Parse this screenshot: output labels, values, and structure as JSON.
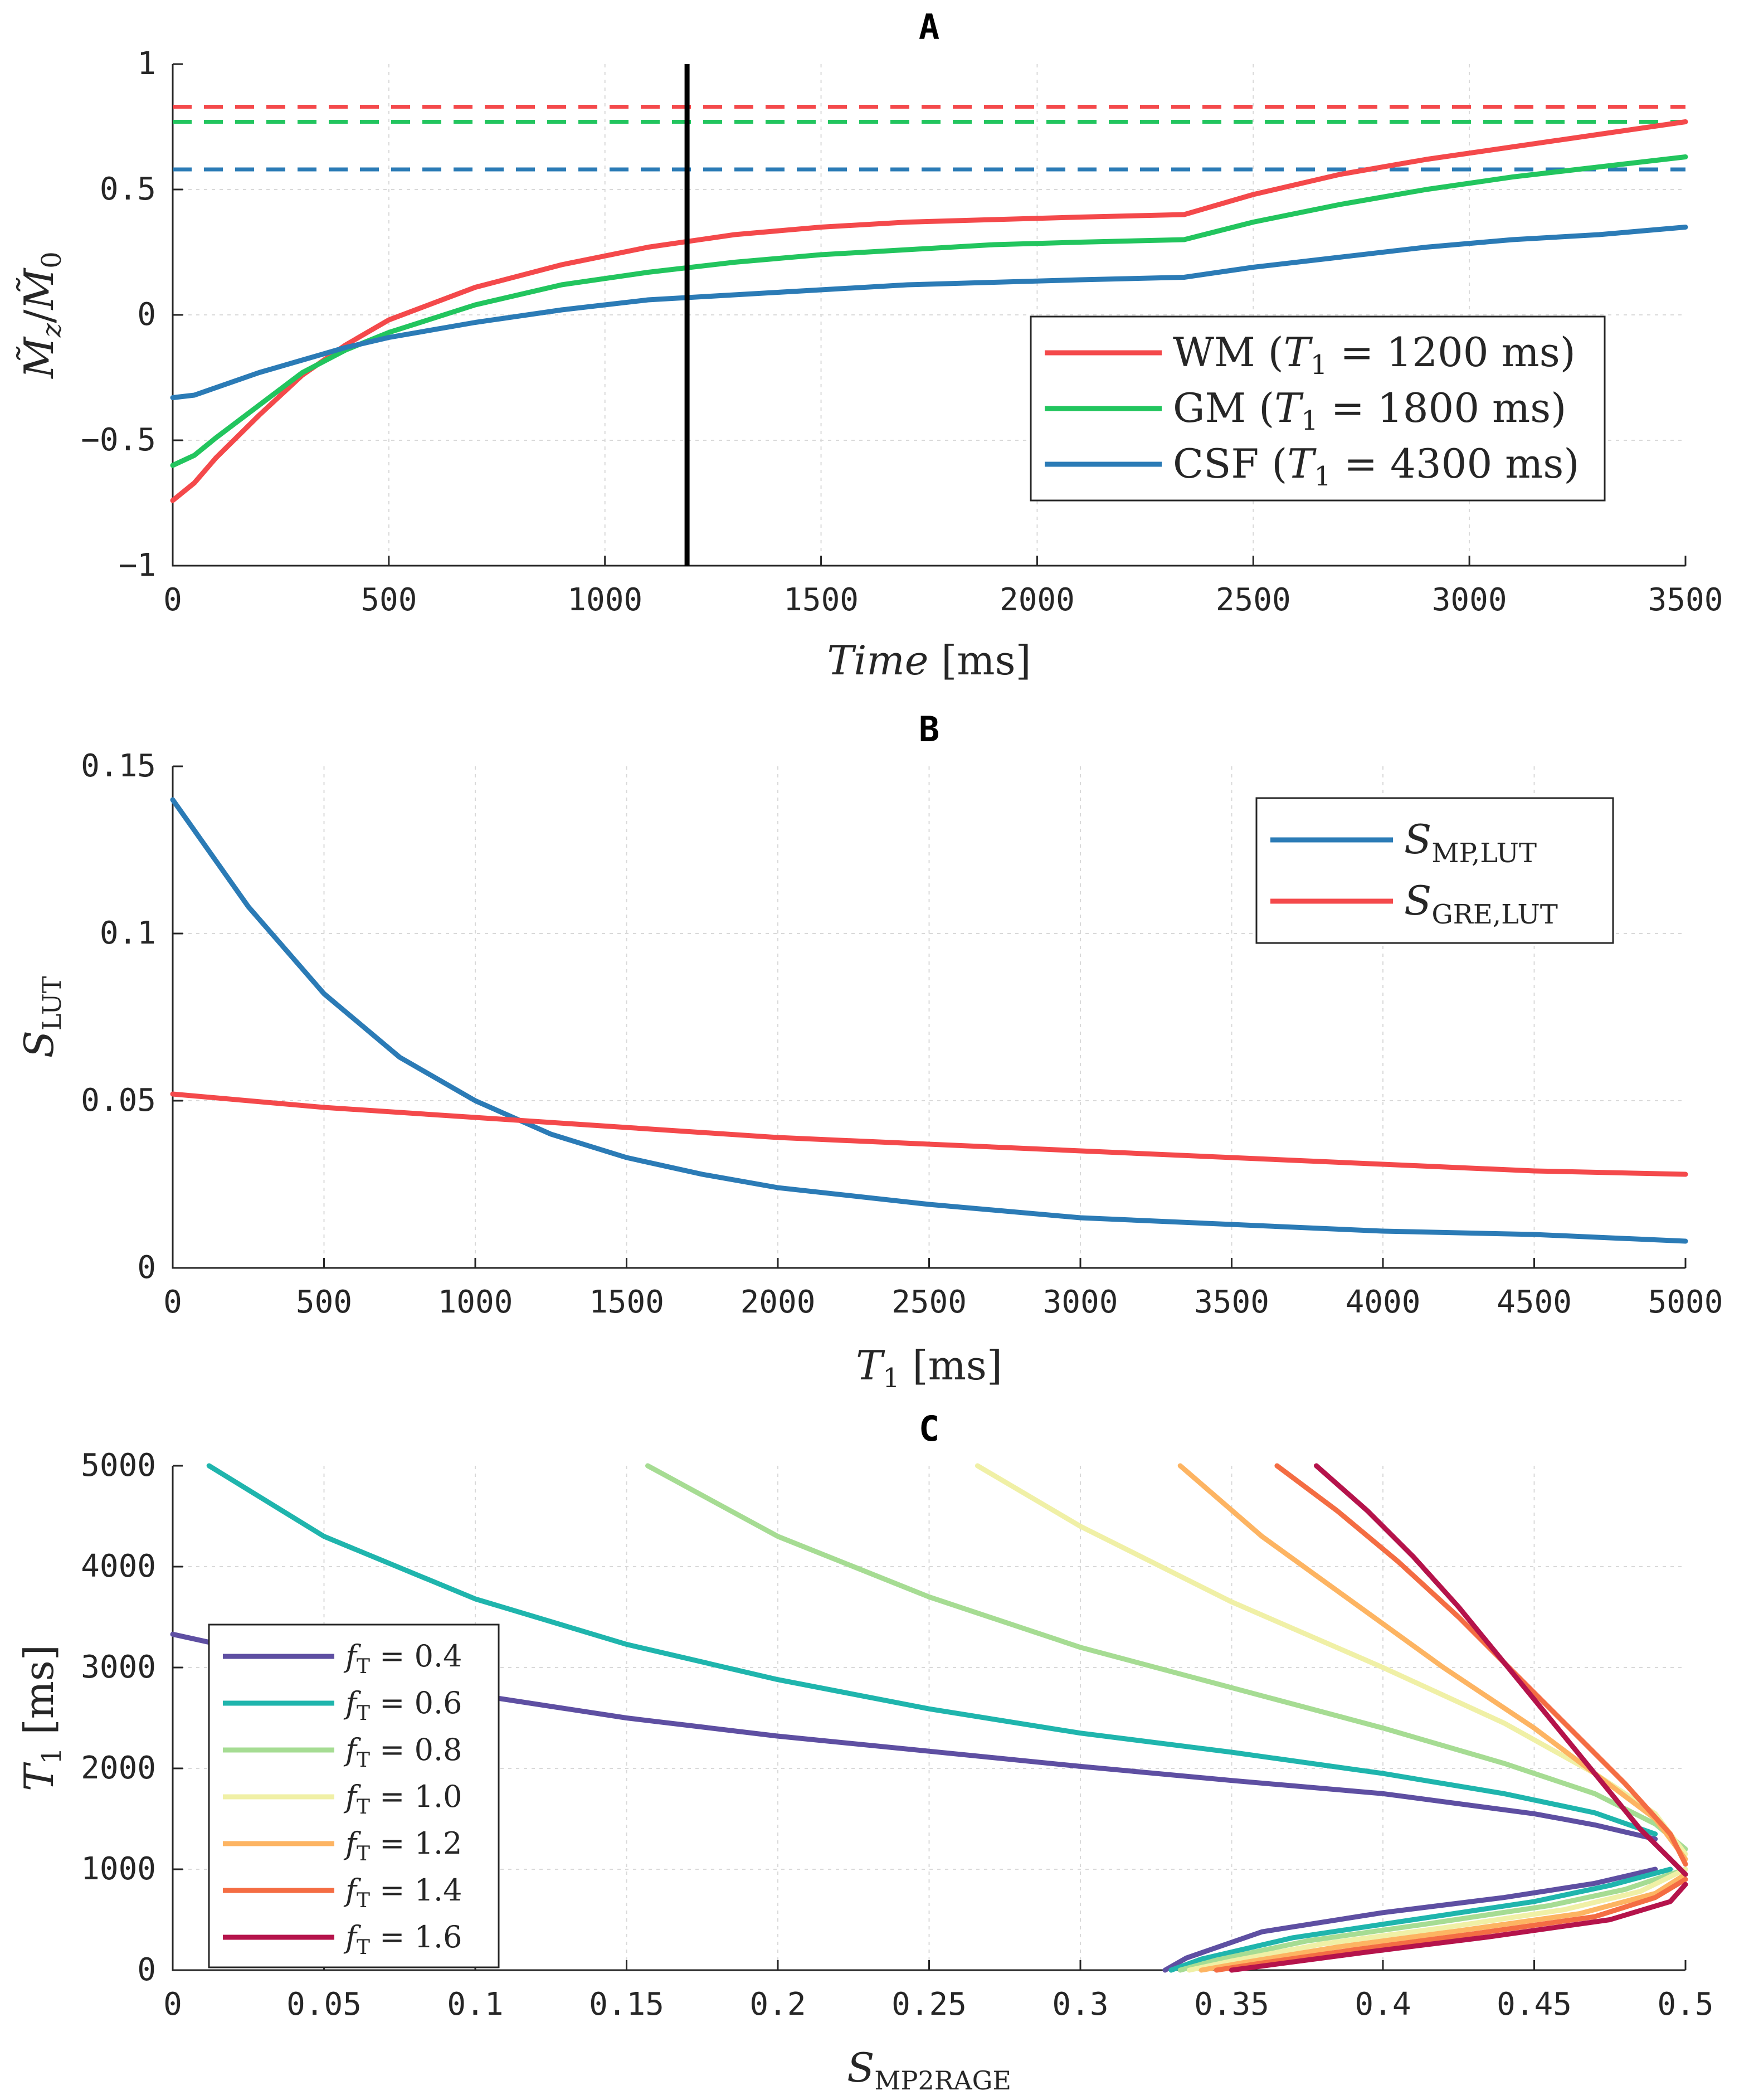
{
  "chart_data": [
    {
      "panel": "A",
      "type": "line",
      "title": "A",
      "xlabel": "Time [ms]",
      "ylabel": "M̃z / M̃0",
      "xlim": [
        0,
        3500
      ],
      "ylim": [
        -1,
        1
      ],
      "xticks": [
        0,
        500,
        1000,
        1500,
        2000,
        2500,
        3000,
        3500
      ],
      "yticks": [
        -1,
        -0.5,
        0,
        0.5,
        1
      ],
      "ytick_labels": [
        "−1",
        "−0.5",
        "0",
        "0.5",
        "1"
      ],
      "grid": true,
      "legend_position": "lower-right",
      "vertical_line": {
        "x": 1190,
        "color": "#000000"
      },
      "series": [
        {
          "name": "WM (T1 = 1200 ms)",
          "label_parts": [
            "WM (",
            "T",
            "1",
            " = 1200 ms)"
          ],
          "color": "#f4494b",
          "x": [
            0,
            50,
            100,
            200,
            300,
            400,
            500,
            700,
            900,
            1100,
            1300,
            1500,
            1700,
            1900,
            2100,
            2340,
            2500,
            2700,
            2900,
            3100,
            3300,
            3500
          ],
          "y": [
            -0.74,
            -0.67,
            -0.57,
            -0.4,
            -0.24,
            -0.12,
            -0.02,
            0.11,
            0.2,
            0.27,
            0.32,
            0.35,
            0.37,
            0.38,
            0.39,
            0.4,
            0.48,
            0.56,
            0.62,
            0.67,
            0.72,
            0.77
          ]
        },
        {
          "name": "GM (T1 = 1800 ms)",
          "label_parts": [
            "GM (",
            "T",
            "1",
            " = 1800 ms)"
          ],
          "color": "#22c55e",
          "x": [
            0,
            50,
            100,
            200,
            300,
            400,
            500,
            700,
            900,
            1100,
            1300,
            1500,
            1700,
            1900,
            2100,
            2340,
            2500,
            2700,
            2900,
            3100,
            3300,
            3500
          ],
          "y": [
            -0.6,
            -0.56,
            -0.49,
            -0.36,
            -0.23,
            -0.14,
            -0.07,
            0.04,
            0.12,
            0.17,
            0.21,
            0.24,
            0.26,
            0.28,
            0.29,
            0.3,
            0.37,
            0.44,
            0.5,
            0.55,
            0.59,
            0.63
          ]
        },
        {
          "name": "CSF (T1 = 4300 ms)",
          "label_parts": [
            "CSF (",
            "T",
            "1",
            " = 4300 ms)"
          ],
          "color": "#2b7bb6",
          "x": [
            0,
            50,
            100,
            200,
            300,
            400,
            500,
            700,
            900,
            1100,
            1300,
            1500,
            1700,
            1900,
            2100,
            2340,
            2500,
            2700,
            2900,
            3100,
            3300,
            3500
          ],
          "y": [
            -0.33,
            -0.32,
            -0.29,
            -0.23,
            -0.18,
            -0.13,
            -0.09,
            -0.03,
            0.02,
            0.06,
            0.08,
            0.1,
            0.12,
            0.13,
            0.14,
            0.15,
            0.19,
            0.23,
            0.27,
            0.3,
            0.32,
            0.35
          ]
        }
      ],
      "reference_lines": [
        {
          "y": 0.83,
          "color": "#f4494b"
        },
        {
          "y": 0.77,
          "color": "#22c55e"
        },
        {
          "y": 0.58,
          "color": "#2b7bb6"
        }
      ]
    },
    {
      "panel": "B",
      "type": "line",
      "title": "B",
      "xlabel": "T1 [ms]",
      "ylabel": "S_LUT",
      "xlim": [
        0,
        5000
      ],
      "ylim": [
        0,
        0.15
      ],
      "xticks": [
        0,
        500,
        1000,
        1500,
        2000,
        2500,
        3000,
        3500,
        4000,
        4500,
        5000
      ],
      "yticks": [
        0,
        0.05,
        0.1,
        0.15
      ],
      "ytick_labels": [
        "0",
        "0.05",
        "0.1",
        "0.15"
      ],
      "grid": true,
      "legend_position": "top-right",
      "series": [
        {
          "name": "S_MP,LUT",
          "label_parts": [
            "S",
            "MP,LUT"
          ],
          "color": "#2b7bb6",
          "x": [
            0,
            250,
            500,
            750,
            1000,
            1250,
            1500,
            1750,
            2000,
            2500,
            3000,
            3500,
            4000,
            4500,
            5000
          ],
          "y": [
            0.14,
            0.108,
            0.082,
            0.063,
            0.05,
            0.04,
            0.033,
            0.028,
            0.024,
            0.019,
            0.015,
            0.013,
            0.011,
            0.01,
            0.008
          ]
        },
        {
          "name": "S_GRE,LUT",
          "label_parts": [
            "S",
            "GRE,LUT"
          ],
          "color": "#f4494b",
          "x": [
            0,
            500,
            1000,
            1500,
            2000,
            2500,
            3000,
            3500,
            4000,
            4500,
            5000
          ],
          "y": [
            0.052,
            0.048,
            0.045,
            0.042,
            0.039,
            0.037,
            0.035,
            0.033,
            0.031,
            0.029,
            0.028
          ]
        }
      ]
    },
    {
      "panel": "C",
      "type": "line",
      "title": "C",
      "xlabel": "S_MP2RAGE",
      "ylabel": "T1 [ms]",
      "xlim": [
        0,
        0.5
      ],
      "ylim": [
        0,
        5000
      ],
      "xticks": [
        0,
        0.05,
        0.1,
        0.15,
        0.2,
        0.25,
        0.3,
        0.35,
        0.4,
        0.45,
        0.5
      ],
      "xtick_labels": [
        "0",
        "0.05",
        "0.1",
        "0.15",
        "0.2",
        "0.25",
        "0.3",
        "0.35",
        "0.4",
        "0.45",
        "0.5"
      ],
      "yticks": [
        0,
        1000,
        2000,
        3000,
        4000,
        5000
      ],
      "grid": true,
      "legend_position": "lower-left",
      "series": [
        {
          "name": "fT = 0.4",
          "label_parts": [
            "f",
            "T",
            " = 0.4"
          ],
          "color": "#5e4fa2",
          "upper": {
            "x": [
              0.0,
              0.05,
              0.1,
              0.15,
              0.2,
              0.25,
              0.3,
              0.35,
              0.4,
              0.45,
              0.47,
              0.49
            ],
            "y": [
              3330,
              3000,
              2730,
              2500,
              2320,
              2170,
              2020,
              1880,
              1750,
              1550,
              1440,
              1300
            ]
          },
          "lower": {
            "x": [
              0.328,
              0.335,
              0.36,
              0.4,
              0.44,
              0.47,
              0.49
            ],
            "y": [
              0,
              120,
              380,
              570,
              720,
              860,
              1000
            ]
          }
        },
        {
          "name": "fT = 0.6",
          "label_parts": [
            "f",
            "T",
            " = 0.6"
          ],
          "color": "#1fb5ad",
          "upper": {
            "x": [
              0.012,
              0.05,
              0.1,
              0.15,
              0.2,
              0.25,
              0.3,
              0.35,
              0.4,
              0.44,
              0.47,
              0.49
            ],
            "y": [
              5000,
              4300,
              3680,
              3230,
              2880,
              2590,
              2350,
              2160,
              1950,
              1750,
              1560,
              1350
            ]
          },
          "lower": {
            "x": [
              0.33,
              0.34,
              0.37,
              0.41,
              0.45,
              0.475,
              0.495
            ],
            "y": [
              0,
              110,
              320,
              500,
              680,
              840,
              1000
            ]
          }
        },
        {
          "name": "fT = 0.8",
          "label_parts": [
            "f",
            "T",
            " = 0.8"
          ],
          "color": "#a6dc93",
          "upper": {
            "x": [
              0.157,
              0.2,
              0.25,
              0.3,
              0.35,
              0.4,
              0.44,
              0.47,
              0.49,
              0.5
            ],
            "y": [
              5000,
              4300,
              3700,
              3200,
              2800,
              2400,
              2050,
              1750,
              1450,
              1200
            ]
          },
          "lower": {
            "x": [
              0.333,
              0.345,
              0.375,
              0.415,
              0.455,
              0.48,
              0.5
            ],
            "y": [
              0,
              100,
              290,
              460,
              640,
              800,
              1000
            ]
          }
        },
        {
          "name": "fT = 1.0",
          "label_parts": [
            "f",
            "T",
            " = 1.0"
          ],
          "color": "#f0f0a6",
          "upper": {
            "x": [
              0.266,
              0.3,
              0.35,
              0.4,
              0.44,
              0.47,
              0.49,
              0.5
            ],
            "y": [
              5000,
              4400,
              3650,
              3000,
              2450,
              1950,
              1550,
              1150
            ]
          },
          "lower": {
            "x": [
              0.336,
              0.35,
              0.38,
              0.42,
              0.46,
              0.485,
              0.5
            ],
            "y": [
              0,
              90,
              260,
              420,
              600,
              780,
              1000
            ]
          }
        },
        {
          "name": "fT = 1.2",
          "label_parts": [
            "f",
            "T",
            " = 1.2"
          ],
          "color": "#fdb462",
          "upper": {
            "x": [
              0.333,
              0.36,
              0.39,
              0.42,
              0.45,
              0.47,
              0.49,
              0.5
            ],
            "y": [
              5000,
              4300,
              3650,
              3000,
              2400,
              1950,
              1500,
              1100
            ]
          },
          "lower": {
            "x": [
              0.34,
              0.355,
              0.385,
              0.425,
              0.465,
              0.49,
              0.5
            ],
            "y": [
              0,
              80,
              230,
              390,
              560,
              760,
              950
            ]
          }
        },
        {
          "name": "fT = 1.4",
          "label_parts": [
            "f",
            "T",
            " = 1.4"
          ],
          "color": "#f46d43",
          "upper": {
            "x": [
              0.365,
              0.385,
              0.405,
              0.425,
              0.445,
              0.465,
              0.48,
              0.495,
              0.5
            ],
            "y": [
              5000,
              4550,
              4050,
              3500,
              2900,
              2300,
              1850,
              1350,
              1050
            ]
          },
          "lower": {
            "x": [
              0.345,
              0.36,
              0.39,
              0.43,
              0.47,
              0.49,
              0.5
            ],
            "y": [
              0,
              70,
              200,
              360,
              530,
              720,
              900
            ]
          }
        },
        {
          "name": "fT = 1.6",
          "label_parts": [
            "f",
            "T",
            " = 1.6"
          ],
          "color": "#b5134b",
          "upper": {
            "x": [
              0.378,
              0.395,
              0.41,
              0.425,
              0.44,
              0.455,
              0.47,
              0.485,
              0.5
            ],
            "y": [
              5000,
              4550,
              4100,
              3600,
              3050,
              2500,
              1950,
              1400,
              950
            ]
          },
          "lower": {
            "x": [
              0.35,
              0.365,
              0.395,
              0.435,
              0.475,
              0.495,
              0.5
            ],
            "y": [
              0,
              60,
              180,
              330,
              500,
              680,
              850
            ]
          }
        }
      ]
    }
  ]
}
